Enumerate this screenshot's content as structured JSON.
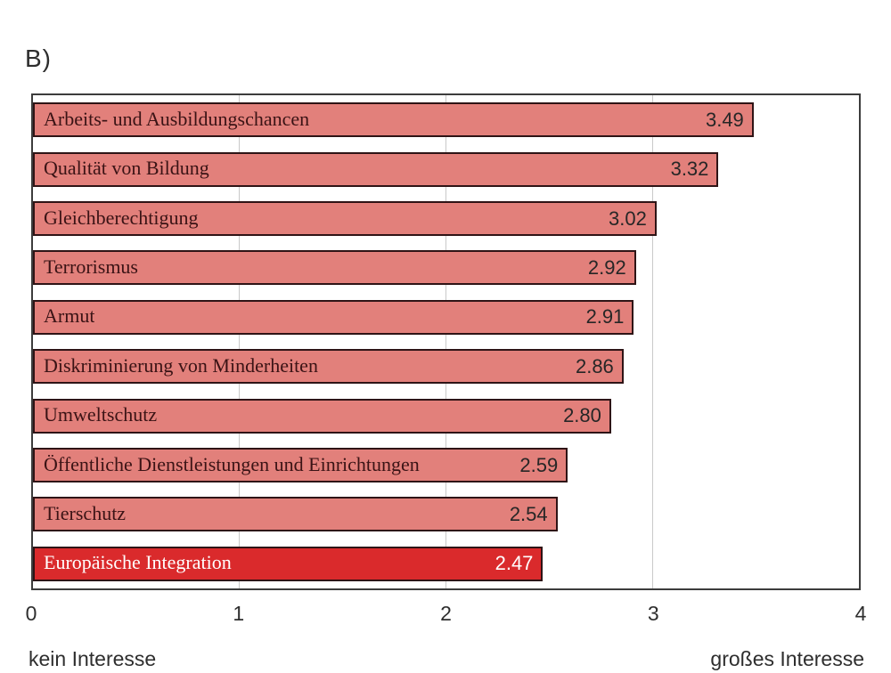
{
  "figure_label": "B)",
  "captions": {
    "left": "kein Interesse",
    "right": "großes Interesse"
  },
  "chart_data": {
    "type": "bar",
    "orientation": "horizontal",
    "title": "",
    "xlabel": "",
    "ylabel": "",
    "xlim": [
      0,
      4
    ],
    "x_ticks": [
      "0",
      "1",
      "2",
      "3",
      "4"
    ],
    "gridlines_at": [
      1,
      2,
      3
    ],
    "legend": "none",
    "categories": [
      "Arbeits- und Ausbildungschancen",
      "Qualität von Bildung",
      "Gleichberechtigung",
      "Terrorismus",
      "Armut",
      "Diskriminierung von Minderheiten",
      "Umweltschutz",
      "Öffentliche Dienstleistungen und Einrichtungen",
      "Tierschutz",
      "Europäische Integration"
    ],
    "values": [
      3.49,
      3.32,
      3.02,
      2.92,
      2.91,
      2.86,
      2.8,
      2.59,
      2.54,
      2.47
    ],
    "value_labels": [
      "3.49",
      "3.32",
      "3.02",
      "2.92",
      "2.91",
      "2.86",
      "2.80",
      "2.59",
      "2.54",
      "2.47"
    ],
    "highlighted_category": "Europäische Integration",
    "highlighted_index": 9,
    "axis_caption_min": "kein Interesse",
    "axis_caption_max": "großes Interesse"
  },
  "colors": {
    "bar_fill": "#e2807b",
    "bar_border": "#2e1416",
    "bar_label_text": "#3a1315",
    "bar_value_text": "#262626",
    "highlight_fill": "#da2a2c",
    "highlight_text": "#ffffff",
    "frame_border": "#3c3c3c",
    "gridline": "#c9c9c9",
    "axis_text": "#2e2e2e"
  }
}
